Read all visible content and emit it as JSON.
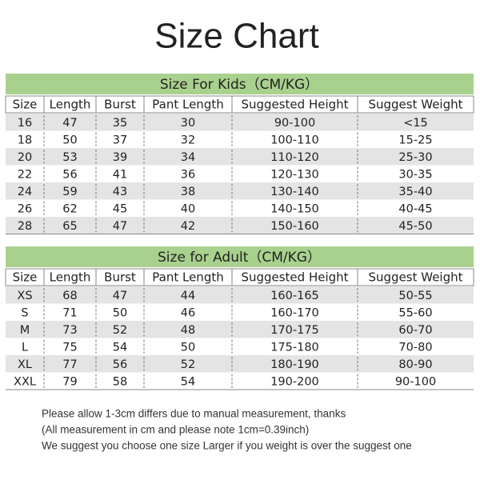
{
  "title": "Size Chart",
  "kids": {
    "title": "Size For Kids（CM/KG）",
    "headers": [
      "Size",
      "Length",
      "Burst",
      "Pant Length",
      "Suggested Height",
      "Suggest Weight"
    ],
    "rows": [
      [
        "16",
        "47",
        "35",
        "30",
        "90-100",
        "<15"
      ],
      [
        "18",
        "50",
        "37",
        "32",
        "100-110",
        "15-25"
      ],
      [
        "20",
        "53",
        "39",
        "34",
        "110-120",
        "25-30"
      ],
      [
        "22",
        "56",
        "41",
        "36",
        "120-130",
        "30-35"
      ],
      [
        "24",
        "59",
        "43",
        "38",
        "130-140",
        "35-40"
      ],
      [
        "26",
        "62",
        "45",
        "40",
        "140-150",
        "40-45"
      ],
      [
        "28",
        "65",
        "47",
        "42",
        "150-160",
        "45-50"
      ]
    ]
  },
  "adult": {
    "title": "Size for Adult（CM/KG）",
    "headers": [
      "Size",
      "Length",
      "Burst",
      "Pant Length",
      "Suggested Height",
      "Suggest Weight"
    ],
    "rows": [
      [
        "XS",
        "68",
        "47",
        "44",
        "160-165",
        "50-55"
      ],
      [
        "S",
        "71",
        "50",
        "46",
        "160-170",
        "55-60"
      ],
      [
        "M",
        "73",
        "52",
        "48",
        "170-175",
        "60-70"
      ],
      [
        "L",
        "75",
        "54",
        "50",
        "175-180",
        "70-80"
      ],
      [
        "XL",
        "77",
        "56",
        "52",
        "180-190",
        "80-90"
      ],
      [
        "XXL",
        "79",
        "58",
        "54",
        "190-200",
        "90-100"
      ]
    ]
  },
  "notes": [
    "Please allow 1-3cm differs due to manual measurement, thanks",
    "(All measurement in cm and please note 1cm=0.39inch)",
    "We suggest you choose one size Larger if you weight is over the suggest one"
  ]
}
